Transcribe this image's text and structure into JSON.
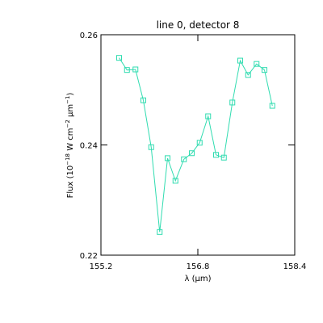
{
  "chart_data": {
    "type": "line",
    "title": "line 0, detector 8",
    "xlabel": "λ (µm)",
    "ylabel": [
      "Flux (10",
      "−18",
      " W cm",
      "−2",
      " µm",
      "−1",
      ")"
    ],
    "x": [
      155.5,
      155.63,
      155.77,
      155.9,
      156.03,
      156.17,
      156.3,
      156.43,
      156.57,
      156.7,
      156.83,
      156.97,
      157.1,
      157.23,
      157.37,
      157.5,
      157.63,
      157.77,
      157.9,
      158.03
    ],
    "series": [
      {
        "color": "#30dcb0",
        "values": [
          0.2558,
          0.2536,
          0.2537,
          0.2481,
          0.2396,
          0.2242,
          0.2376,
          0.2335,
          0.2374,
          0.2385,
          0.2404,
          0.2452,
          0.2382,
          0.2377,
          0.2477,
          0.2553,
          0.2527,
          0.2547,
          0.2536,
          0.2471
        ]
      }
    ],
    "xlim": [
      155.2,
      158.4
    ],
    "xticks": [
      155.2,
      156.8,
      158.4
    ],
    "ylim": [
      0.22,
      0.26
    ],
    "yticks": [
      0.22,
      0.24,
      0.26
    ],
    "marker": "square"
  }
}
